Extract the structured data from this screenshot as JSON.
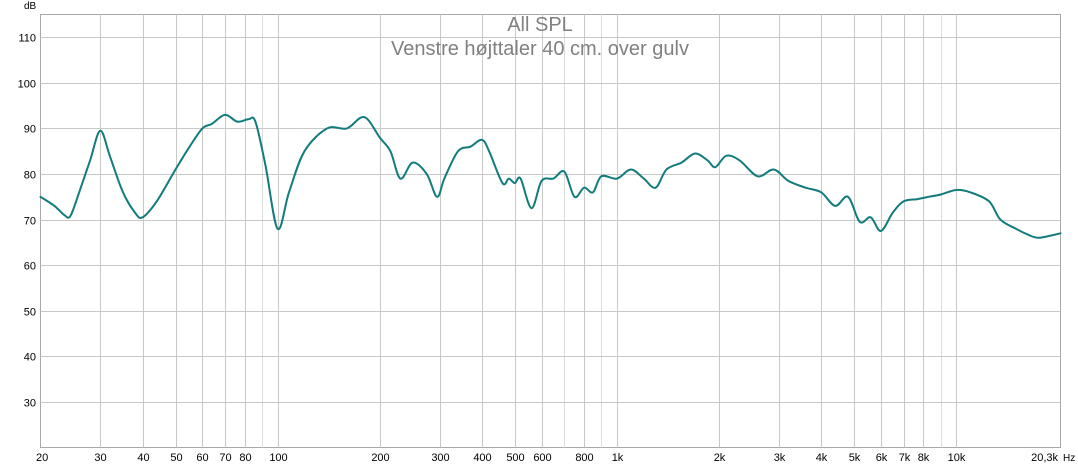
{
  "chart_data": {
    "type": "line",
    "title": "All SPL",
    "subtitle": "Venstre højttaler 40 cm. over gulv",
    "ylabel": "dB",
    "xunit": "Hz",
    "xscale": "log",
    "xlim": [
      20,
      20300
    ],
    "ylim": [
      20,
      115
    ],
    "grid": true,
    "legend": "none",
    "x_ticks": [
      {
        "value": 20,
        "label": "20"
      },
      {
        "value": 30,
        "label": "30"
      },
      {
        "value": 40,
        "label": "40"
      },
      {
        "value": 50,
        "label": "50"
      },
      {
        "value": 60,
        "label": "60"
      },
      {
        "value": 70,
        "label": "70"
      },
      {
        "value": 80,
        "label": "80"
      },
      {
        "value": 100,
        "label": "100"
      },
      {
        "value": 200,
        "label": "200"
      },
      {
        "value": 300,
        "label": "300"
      },
      {
        "value": 400,
        "label": "400"
      },
      {
        "value": 500,
        "label": "500"
      },
      {
        "value": 600,
        "label": "600"
      },
      {
        "value": 800,
        "label": "800"
      },
      {
        "value": 1000,
        "label": "1k"
      },
      {
        "value": 2000,
        "label": "2k"
      },
      {
        "value": 3000,
        "label": "3k"
      },
      {
        "value": 4000,
        "label": "4k"
      },
      {
        "value": 5000,
        "label": "5k"
      },
      {
        "value": 6000,
        "label": "6k"
      },
      {
        "value": 7000,
        "label": "7k"
      },
      {
        "value": 8000,
        "label": "8k"
      },
      {
        "value": 10000,
        "label": "10k"
      },
      {
        "value": 20300,
        "label": "20,3k"
      }
    ],
    "x_minor": [
      90,
      700,
      900,
      9000
    ],
    "y_ticks": [
      30,
      40,
      50,
      60,
      70,
      80,
      90,
      100,
      110
    ],
    "series": [
      {
        "color": "#127c7c",
        "points": [
          [
            20,
            75
          ],
          [
            22,
            73
          ],
          [
            23.5,
            71
          ],
          [
            24.5,
            70.8
          ],
          [
            26,
            76
          ],
          [
            28,
            83
          ],
          [
            30,
            89.5
          ],
          [
            32,
            84
          ],
          [
            35,
            76
          ],
          [
            38,
            71.5
          ],
          [
            40,
            70.5
          ],
          [
            44,
            74
          ],
          [
            50,
            81
          ],
          [
            55,
            86
          ],
          [
            60,
            90
          ],
          [
            64,
            91
          ],
          [
            70,
            93
          ],
          [
            76,
            91.5
          ],
          [
            82,
            92
          ],
          [
            86,
            91.5
          ],
          [
            92,
            82
          ],
          [
            100,
            68
          ],
          [
            108,
            76
          ],
          [
            120,
            85
          ],
          [
            140,
            90
          ],
          [
            160,
            90
          ],
          [
            180,
            92.5
          ],
          [
            200,
            88
          ],
          [
            215,
            85
          ],
          [
            230,
            79
          ],
          [
            250,
            82.5
          ],
          [
            275,
            80
          ],
          [
            295,
            75
          ],
          [
            310,
            79
          ],
          [
            340,
            85
          ],
          [
            370,
            86
          ],
          [
            400,
            87.5
          ],
          [
            420,
            85
          ],
          [
            460,
            78
          ],
          [
            480,
            79
          ],
          [
            500,
            78
          ],
          [
            520,
            79
          ],
          [
            560,
            72.5
          ],
          [
            600,
            78.5
          ],
          [
            650,
            79
          ],
          [
            700,
            80.5
          ],
          [
            750,
            75
          ],
          [
            800,
            77
          ],
          [
            850,
            76
          ],
          [
            900,
            79.5
          ],
          [
            1000,
            79
          ],
          [
            1100,
            81
          ],
          [
            1200,
            79
          ],
          [
            1300,
            77
          ],
          [
            1400,
            81
          ],
          [
            1550,
            82.5
          ],
          [
            1700,
            84.5
          ],
          [
            1850,
            83
          ],
          [
            1950,
            81.5
          ],
          [
            2100,
            84
          ],
          [
            2300,
            83
          ],
          [
            2600,
            79.5
          ],
          [
            2900,
            81
          ],
          [
            3200,
            78.5
          ],
          [
            3600,
            77
          ],
          [
            4000,
            76
          ],
          [
            4400,
            73
          ],
          [
            4800,
            75
          ],
          [
            5200,
            69.5
          ],
          [
            5600,
            70.5
          ],
          [
            6000,
            67.5
          ],
          [
            6500,
            71.5
          ],
          [
            7000,
            74
          ],
          [
            7700,
            74.5
          ],
          [
            8300,
            75
          ],
          [
            9000,
            75.5
          ],
          [
            10000,
            76.5
          ],
          [
            11000,
            76
          ],
          [
            12500,
            74
          ],
          [
            13500,
            70
          ],
          [
            15000,
            68
          ],
          [
            16500,
            66.5
          ],
          [
            17500,
            66
          ],
          [
            19000,
            66.5
          ],
          [
            20300,
            67
          ]
        ]
      }
    ]
  }
}
